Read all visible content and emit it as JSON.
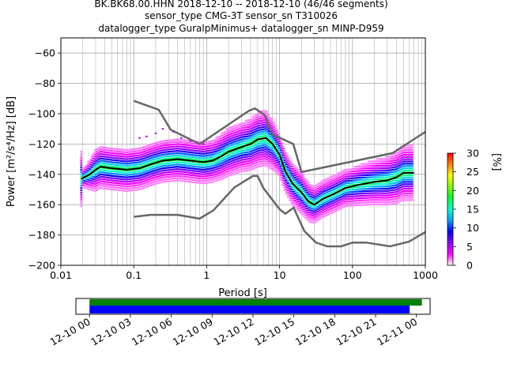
{
  "figure": {
    "title_lines": [
      "BK.BK68.00.HHN   2018-12-10 -- 2018-12-10  (46/46 segments)",
      "sensor_type CMG-3T sensor_sn T310026",
      "datalogger_type GuralpMinimus+ datalogger_sn MINP-D959"
    ]
  },
  "chart_data": [
    {
      "type": "heatmap",
      "name": "ppsd",
      "xlabel": "Period [s]",
      "ylabel": "Power [m²/s⁴/Hz] [dB]",
      "x_scale": "log",
      "xlim": [
        0.01,
        1000
      ],
      "ylim": [
        -200,
        -50
      ],
      "x_ticks": [
        0.01,
        0.1,
        1,
        10,
        100,
        1000
      ],
      "x_tick_labels": [
        "0.01",
        "0.1",
        "1",
        "10",
        "100",
        "1000"
      ],
      "y_ticks": [
        -200,
        -180,
        -160,
        -140,
        -120,
        -100,
        -80,
        -60
      ],
      "y_tick_labels": [
        "−200",
        "−180",
        "−160",
        "−140",
        "−120",
        "−100",
        "−80",
        "−60"
      ],
      "grid": true,
      "colorbar": {
        "label": "[%]",
        "range": [
          0,
          30
        ],
        "ticks": [
          0,
          5,
          10,
          15,
          20,
          25,
          30
        ],
        "colors": [
          "#ffffff",
          "#ff00ff",
          "#9000ff",
          "#0000ff",
          "#00a0ff",
          "#00ffd0",
          "#00ff40",
          "#80ff00",
          "#ffff00",
          "#ff8000",
          "#ff0000"
        ]
      },
      "mode_curve": {
        "name": "mode",
        "color": "#000000",
        "points": [
          [
            0.019,
            -143
          ],
          [
            0.025,
            -140
          ],
          [
            0.03,
            -137
          ],
          [
            0.035,
            -135
          ],
          [
            0.05,
            -136
          ],
          [
            0.08,
            -137
          ],
          [
            0.12,
            -136
          ],
          [
            0.18,
            -133
          ],
          [
            0.25,
            -131
          ],
          [
            0.4,
            -130
          ],
          [
            0.6,
            -131
          ],
          [
            0.9,
            -132
          ],
          [
            1.2,
            -131
          ],
          [
            1.6,
            -128
          ],
          [
            2,
            -125
          ],
          [
            3,
            -122
          ],
          [
            4,
            -120
          ],
          [
            5,
            -117
          ],
          [
            6.5,
            -116
          ],
          [
            8,
            -120
          ],
          [
            10,
            -127
          ],
          [
            12,
            -138
          ],
          [
            15,
            -146
          ],
          [
            20,
            -152
          ],
          [
            25,
            -158
          ],
          [
            30,
            -160
          ],
          [
            40,
            -156
          ],
          [
            55,
            -153
          ],
          [
            80,
            -149
          ],
          [
            120,
            -147
          ],
          [
            200,
            -145
          ],
          [
            300,
            -144
          ],
          [
            400,
            -142
          ],
          [
            500,
            -139
          ],
          [
            700,
            -139
          ]
        ]
      },
      "noise_models": [
        {
          "name": "NHNM",
          "color": "#666666",
          "points": [
            [
              0.1,
              -91.5
            ],
            [
              0.22,
              -97.4
            ],
            [
              0.32,
              -110.5
            ],
            [
              0.8,
              -120
            ],
            [
              3.8,
              -98
            ],
            [
              4.6,
              -96.5
            ],
            [
              6.3,
              -101
            ],
            [
              7.9,
              -113.5
            ],
            [
              15.4,
              -120
            ],
            [
              20,
              -138.5
            ],
            [
              354.8,
              -126
            ],
            [
              1000,
              -112
            ]
          ]
        },
        {
          "name": "NLNM",
          "color": "#666666",
          "points": [
            [
              0.1,
              -168
            ],
            [
              0.17,
              -166.7
            ],
            [
              0.4,
              -166.7
            ],
            [
              0.8,
              -169.2
            ],
            [
              1.24,
              -163.7
            ],
            [
              2.4,
              -148.6
            ],
            [
              4.3,
              -141.1
            ],
            [
              5,
              -141.1
            ],
            [
              6,
              -149
            ],
            [
              10,
              -163
            ],
            [
              12,
              -166
            ],
            [
              15.6,
              -162
            ],
            [
              21.9,
              -177.5
            ],
            [
              31.6,
              -185
            ],
            [
              45,
              -187.5
            ],
            [
              70,
              -187.5
            ],
            [
              101,
              -185
            ],
            [
              154,
              -185
            ],
            [
              328,
              -187.5
            ],
            [
              600,
              -184.4
            ],
            [
              1000,
              -178
            ]
          ]
        }
      ],
      "density_cells": [
        [
          0.02,
          -142,
          6
        ],
        [
          0.025,
          -140,
          10
        ],
        [
          0.03,
          -137,
          14
        ],
        [
          0.04,
          -135,
          14
        ],
        [
          0.06,
          -136,
          14
        ],
        [
          0.1,
          -137,
          14
        ],
        [
          0.15,
          -135,
          14
        ],
        [
          0.2,
          -132,
          14
        ],
        [
          0.3,
          -130,
          14
        ],
        [
          0.5,
          -130,
          14
        ],
        [
          0.8,
          -131,
          14
        ],
        [
          1.2,
          -131,
          14
        ],
        [
          2,
          -125,
          16
        ],
        [
          3,
          -122,
          16
        ],
        [
          5,
          -117,
          18
        ],
        [
          7,
          -117,
          18
        ],
        [
          10,
          -127,
          14
        ],
        [
          15,
          -146,
          14
        ],
        [
          20,
          -152,
          14
        ],
        [
          30,
          -159,
          12
        ],
        [
          50,
          -154,
          12
        ],
        [
          80,
          -150,
          12
        ],
        [
          150,
          -146,
          14
        ],
        [
          300,
          -144,
          16
        ],
        [
          500,
          -139,
          18
        ]
      ]
    },
    {
      "type": "bar",
      "name": "data_availability",
      "x_tick_labels": [
        "12-10 00",
        "12-10 03",
        "12-10 06",
        "12-10 09",
        "12-10 12",
        "12-10 15",
        "12-10 18",
        "12-10 21",
        "12-11 00"
      ],
      "x_range_hours": [
        -1,
        25
      ],
      "series": [
        {
          "name": "data",
          "color": "#008000",
          "start_hour": 0,
          "end_hour": 24.4
        },
        {
          "name": "used",
          "color": "#0000ff",
          "start_hour": 0,
          "end_hour": 23.5
        }
      ]
    }
  ]
}
